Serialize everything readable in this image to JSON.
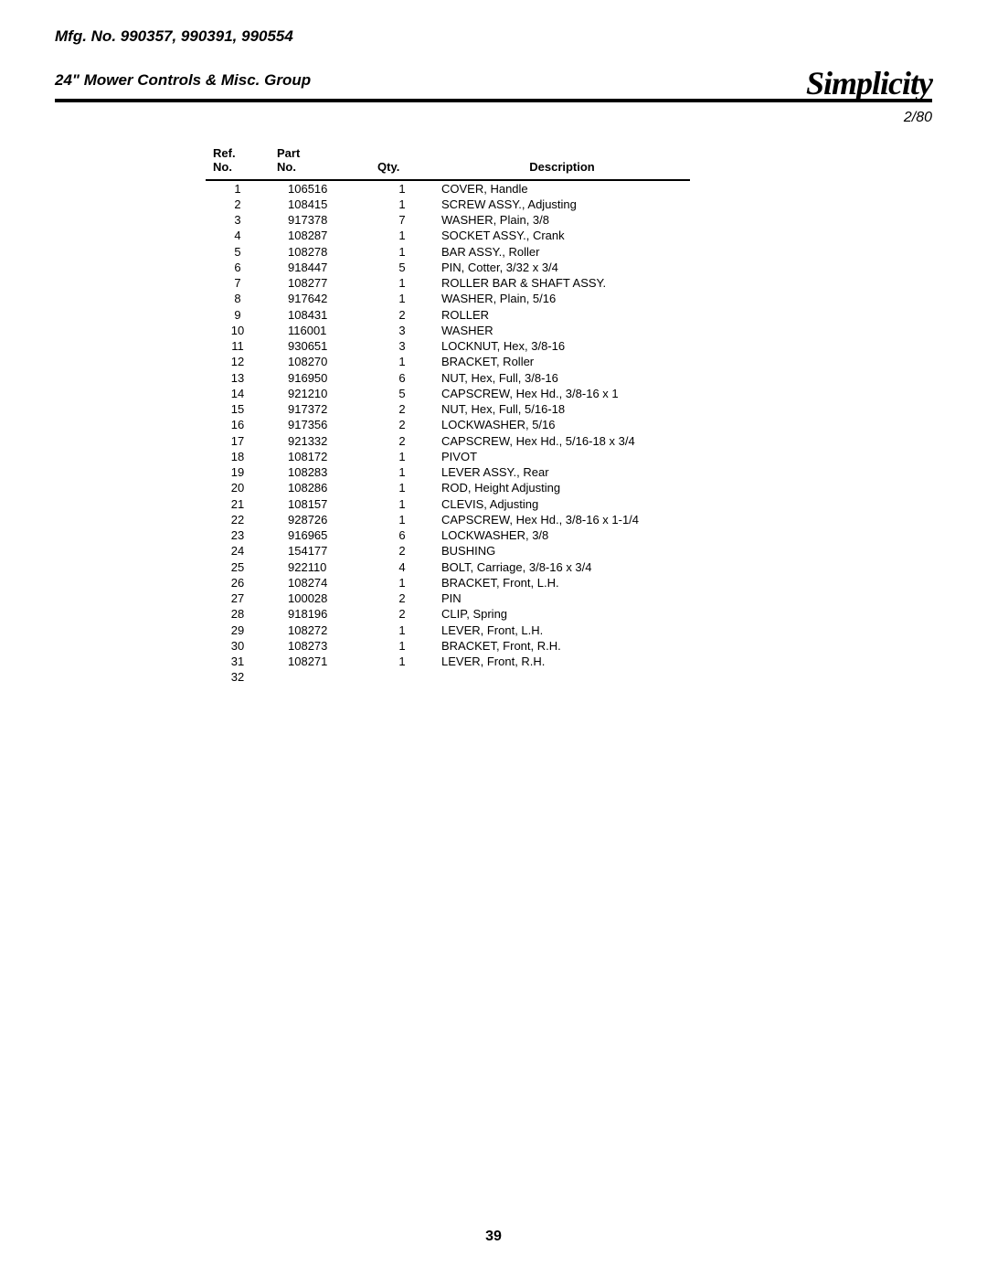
{
  "header": {
    "mfg_line": "Mfg. No. 990357, 990391, 990554",
    "group_line": "24\" Mower Controls & Misc. Group",
    "logo_text": "Simplicity",
    "date_code": "2/80"
  },
  "table": {
    "headers": {
      "ref_line1": "Ref.",
      "ref_line2": "No.",
      "part_line1": "Part",
      "part_line2": "No.",
      "qty": "Qty.",
      "description": "Description"
    },
    "rows": [
      {
        "ref": "1",
        "part": "106516",
        "qty": "1",
        "desc": "COVER, Handle"
      },
      {
        "ref": "2",
        "part": "108415",
        "qty": "1",
        "desc": "SCREW ASSY., Adjusting"
      },
      {
        "ref": "3",
        "part": "917378",
        "qty": "7",
        "desc": "WASHER, Plain, 3/8"
      },
      {
        "ref": "4",
        "part": "108287",
        "qty": "1",
        "desc": "SOCKET ASSY., Crank"
      },
      {
        "ref": "5",
        "part": "108278",
        "qty": "1",
        "desc": "BAR ASSY., Roller"
      },
      {
        "ref": "6",
        "part": "918447",
        "qty": "5",
        "desc": "PIN, Cotter, 3/32 x 3/4"
      },
      {
        "ref": "7",
        "part": "108277",
        "qty": "1",
        "desc": "ROLLER BAR & SHAFT ASSY."
      },
      {
        "ref": "8",
        "part": "917642",
        "qty": "1",
        "desc": "WASHER, Plain, 5/16"
      },
      {
        "ref": "9",
        "part": "108431",
        "qty": "2",
        "desc": "ROLLER"
      },
      {
        "ref": "10",
        "part": "116001",
        "qty": "3",
        "desc": "WASHER"
      },
      {
        "ref": "11",
        "part": "930651",
        "qty": "3",
        "desc": "LOCKNUT, Hex, 3/8-16"
      },
      {
        "ref": "12",
        "part": "108270",
        "qty": "1",
        "desc": "BRACKET, Roller"
      },
      {
        "ref": "13",
        "part": "916950",
        "qty": "6",
        "desc": "NUT, Hex, Full, 3/8-16"
      },
      {
        "ref": "14",
        "part": "921210",
        "qty": "5",
        "desc": "CAPSCREW, Hex Hd., 3/8-16 x 1"
      },
      {
        "ref": "15",
        "part": "917372",
        "qty": "2",
        "desc": "NUT, Hex, Full, 5/16-18"
      },
      {
        "ref": "16",
        "part": "917356",
        "qty": "2",
        "desc": "LOCKWASHER, 5/16"
      },
      {
        "ref": "17",
        "part": "921332",
        "qty": "2",
        "desc": "CAPSCREW, Hex Hd., 5/16-18 x 3/4"
      },
      {
        "ref": "18",
        "part": "108172",
        "qty": "1",
        "desc": "PIVOT"
      },
      {
        "ref": "19",
        "part": "108283",
        "qty": "1",
        "desc": "LEVER ASSY., Rear"
      },
      {
        "ref": "20",
        "part": "108286",
        "qty": "1",
        "desc": "ROD, Height Adjusting"
      },
      {
        "ref": "21",
        "part": "108157",
        "qty": "1",
        "desc": "CLEVIS, Adjusting"
      },
      {
        "ref": "22",
        "part": "928726",
        "qty": "1",
        "desc": "CAPSCREW, Hex Hd., 3/8-16 x 1-1/4"
      },
      {
        "ref": "23",
        "part": "916965",
        "qty": "6",
        "desc": "LOCKWASHER, 3/8"
      },
      {
        "ref": "24",
        "part": "154177",
        "qty": "2",
        "desc": "BUSHING"
      },
      {
        "ref": "25",
        "part": "922110",
        "qty": "4",
        "desc": "BOLT, Carriage, 3/8-16 x 3/4"
      },
      {
        "ref": "26",
        "part": "108274",
        "qty": "1",
        "desc": "BRACKET, Front, L.H."
      },
      {
        "ref": "27",
        "part": "100028",
        "qty": "2",
        "desc": "PIN"
      },
      {
        "ref": "28",
        "part": "918196",
        "qty": "2",
        "desc": "CLIP, Spring"
      },
      {
        "ref": "29",
        "part": "108272",
        "qty": "1",
        "desc": "LEVER, Front, L.H."
      },
      {
        "ref": "30",
        "part": "108273",
        "qty": "1",
        "desc": "BRACKET, Front, R.H."
      },
      {
        "ref": "31",
        "part": "108271",
        "qty": "1",
        "desc": "LEVER, Front, R.H."
      },
      {
        "ref": "32",
        "part": "",
        "qty": "",
        "desc": ""
      }
    ]
  },
  "page_number": "39"
}
